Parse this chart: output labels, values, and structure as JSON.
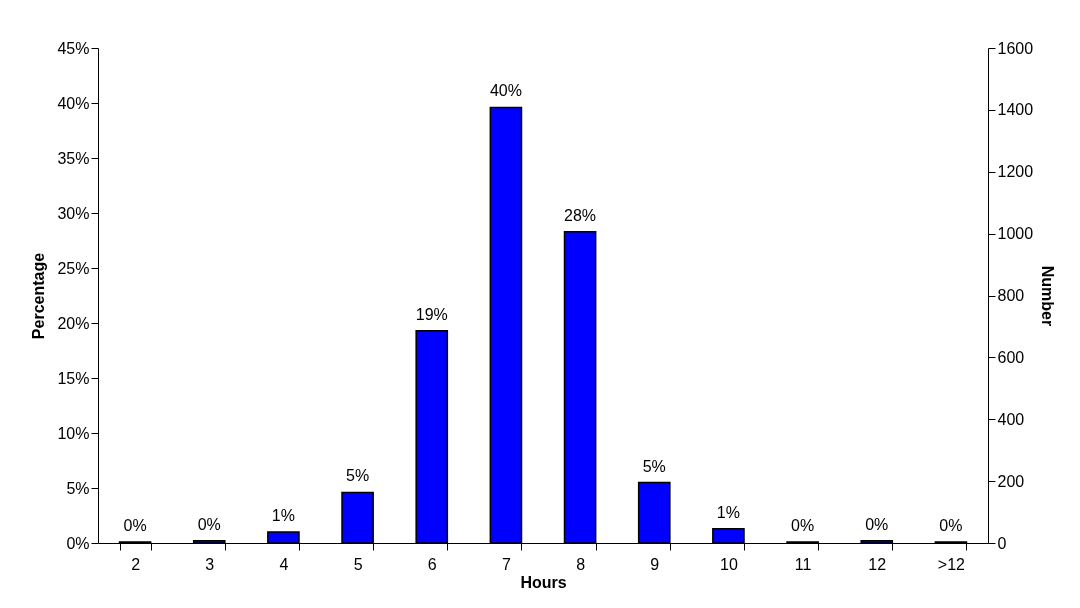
{
  "chart_data": {
    "type": "bar",
    "xlabel": "Hours",
    "ylabel": "Percentage",
    "y2label": "Number",
    "categories": [
      "2",
      "3",
      "4",
      "5",
      "6",
      "7",
      "8",
      "9",
      "10",
      "11",
      "12",
      ">12"
    ],
    "values": [
      0.1,
      0.2,
      1.0,
      4.6,
      19.3,
      39.6,
      28.3,
      5.5,
      1.3,
      0.1,
      0.2,
      0.1
    ],
    "value_labels": [
      "0%",
      "0%",
      "1%",
      "5%",
      "19%",
      "40%",
      "28%",
      "5%",
      "1%",
      "0%",
      "0%",
      "0%"
    ],
    "color": "#0000ff",
    "ylim": [
      0,
      45
    ],
    "yticks": [
      {
        "value": 0,
        "label": "0%"
      },
      {
        "value": 5,
        "label": "5%"
      },
      {
        "value": 10,
        "label": "10%"
      },
      {
        "value": 15,
        "label": "15%"
      },
      {
        "value": 20,
        "label": "20%"
      },
      {
        "value": 25,
        "label": "25%"
      },
      {
        "value": 30,
        "label": "30%"
      },
      {
        "value": 35,
        "label": "35%"
      },
      {
        "value": 40,
        "label": "40%"
      },
      {
        "value": 45,
        "label": "45%"
      }
    ],
    "y2lim": [
      0,
      1600
    ],
    "y2ticks": [
      0,
      200,
      400,
      600,
      800,
      1000,
      1200,
      1400,
      1600
    ],
    "grid": false
  }
}
